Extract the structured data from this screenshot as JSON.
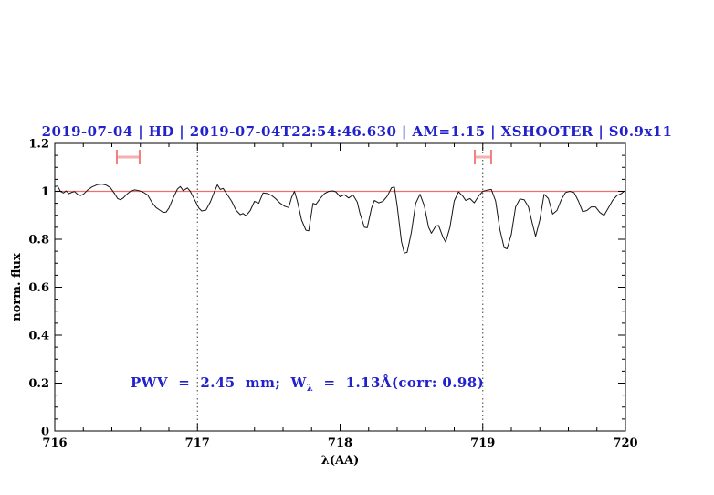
{
  "window": {
    "background": "#ffffff"
  },
  "header": {
    "title": "2019-07-04 | HD | 2019-07-04T22:54:46.630 | AM=1.15 | XSHOOTER | S0.9x11",
    "color": "#2222cc"
  },
  "annotation": {
    "pre": "PWV  =  2.45  mm;  W",
    "sub": "λ",
    "post": "  =  1.13Å(corr: 0.98)",
    "full_text": "PWV = 2.45 mm; Wλ = 1.13Å(corr: 0.98)",
    "color": "#2222cc"
  },
  "chart_data": {
    "type": "line",
    "title": "2019-07-04 | HD | 2019-07-04T22:54:46.630 | AM=1.15 | XSHOOTER | S0.9x11",
    "xlabel": "λ(AA)",
    "ylabel": "norm. flux",
    "xlim": [
      716,
      720
    ],
    "ylim": [
      0,
      1.2
    ],
    "x_major_ticks": [
      716,
      717,
      718,
      719,
      720
    ],
    "x_tick_labels": [
      "716",
      "717",
      "718",
      "719",
      "720"
    ],
    "x_minor_step": 0.2,
    "y_major_ticks": [
      0,
      0.2,
      0.4,
      0.6,
      0.8,
      1,
      1.2
    ],
    "y_tick_labels": [
      "0",
      "0.2",
      "0.4",
      "0.6",
      "0.8",
      "1",
      "1.2"
    ],
    "y_minor_step": 0.05,
    "legend": "none",
    "grid": "dotted vertical lines at x=717 and x=719",
    "dotted_vlines": [
      717,
      719
    ],
    "continuum_line": {
      "y": 1.0,
      "color": "#ef6f6f"
    },
    "ew_markers": [
      {
        "x_from": 716.435,
        "x_to": 716.595,
        "y": 1.143
      },
      {
        "x_from": 718.944,
        "x_to": 719.059,
        "y": 1.143
      }
    ],
    "colors": {
      "spectrum": "#151515",
      "frame": "#000000",
      "dotted_line": "#3c3c3c",
      "marker_caps": "#f17f7f",
      "marker_bar": "#f6b0b0"
    },
    "series": [
      {
        "name": "spectrum",
        "x": [
          716.0,
          716.02,
          716.04,
          716.06,
          716.08,
          716.1,
          716.12,
          716.14,
          716.16,
          716.18,
          716.2,
          716.23,
          716.26,
          716.3,
          716.33,
          716.36,
          716.39,
          716.42,
          716.44,
          716.46,
          716.48,
          716.5,
          716.53,
          716.56,
          716.59,
          716.62,
          716.65,
          716.68,
          716.71,
          716.74,
          716.76,
          716.78,
          716.8,
          716.83,
          716.86,
          716.88,
          716.9,
          716.93,
          716.95,
          716.98,
          717.01,
          717.03,
          717.06,
          717.09,
          717.12,
          717.14,
          717.16,
          717.18,
          717.21,
          717.24,
          717.27,
          717.3,
          717.32,
          717.34,
          717.37,
          717.4,
          717.43,
          717.46,
          717.49,
          717.52,
          717.55,
          717.58,
          717.61,
          717.64,
          717.66,
          717.68,
          717.7,
          717.73,
          717.76,
          717.78,
          717.81,
          717.83,
          717.86,
          717.89,
          717.92,
          717.95,
          717.97,
          718.0,
          718.03,
          718.06,
          718.09,
          718.12,
          718.14,
          718.17,
          718.19,
          718.22,
          718.24,
          718.27,
          718.3,
          718.33,
          718.36,
          718.38,
          718.4,
          718.43,
          718.45,
          718.47,
          718.5,
          718.53,
          718.56,
          718.59,
          718.62,
          718.64,
          718.67,
          718.69,
          718.72,
          718.74,
          718.77,
          718.8,
          718.83,
          718.86,
          718.88,
          718.91,
          718.94,
          718.97,
          719.0,
          719.03,
          719.06,
          719.09,
          719.12,
          719.15,
          719.17,
          719.2,
          719.23,
          719.26,
          719.29,
          719.32,
          719.35,
          719.37,
          719.4,
          719.43,
          719.46,
          719.49,
          719.52,
          719.55,
          719.58,
          719.61,
          719.64,
          719.67,
          719.7,
          719.73,
          719.76,
          719.79,
          719.82,
          719.85,
          719.88,
          719.91,
          719.94,
          719.97,
          719.99
        ],
        "y": [
          1.02,
          1.022,
          1.0,
          0.993,
          1.002,
          0.99,
          0.996,
          0.999,
          0.987,
          0.982,
          0.988,
          1.005,
          1.018,
          1.028,
          1.03,
          1.026,
          1.015,
          0.99,
          0.97,
          0.965,
          0.972,
          0.985,
          1.0,
          1.006,
          1.003,
          0.996,
          0.985,
          0.955,
          0.932,
          0.92,
          0.912,
          0.913,
          0.93,
          0.972,
          1.01,
          1.02,
          1.003,
          1.014,
          1.0,
          0.965,
          0.93,
          0.918,
          0.922,
          0.955,
          1.0,
          1.027,
          1.008,
          1.012,
          0.985,
          0.958,
          0.922,
          0.903,
          0.908,
          0.898,
          0.92,
          0.958,
          0.95,
          0.993,
          0.991,
          0.983,
          0.968,
          0.95,
          0.938,
          0.932,
          0.975,
          1.0,
          0.96,
          0.88,
          0.838,
          0.835,
          0.95,
          0.945,
          0.97,
          0.99,
          1.0,
          1.002,
          0.998,
          0.977,
          0.986,
          0.972,
          0.985,
          0.955,
          0.906,
          0.85,
          0.848,
          0.93,
          0.962,
          0.952,
          0.958,
          0.98,
          1.015,
          1.018,
          0.94,
          0.79,
          0.742,
          0.745,
          0.83,
          0.95,
          0.988,
          0.94,
          0.85,
          0.825,
          0.855,
          0.858,
          0.81,
          0.788,
          0.85,
          0.96,
          0.998,
          0.98,
          0.962,
          0.97,
          0.952,
          0.98,
          1.0,
          1.005,
          1.008,
          0.96,
          0.84,
          0.765,
          0.76,
          0.82,
          0.935,
          0.968,
          0.965,
          0.935,
          0.86,
          0.812,
          0.88,
          0.988,
          0.97,
          0.905,
          0.92,
          0.965,
          0.995,
          1.0,
          0.995,
          0.96,
          0.915,
          0.92,
          0.935,
          0.935,
          0.912,
          0.9,
          0.93,
          0.962,
          0.982,
          0.99,
          1.0
        ]
      }
    ]
  }
}
